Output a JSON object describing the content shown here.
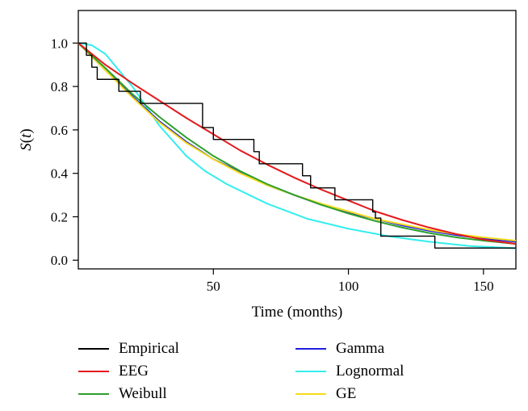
{
  "chart_data": {
    "type": "line",
    "xlabel": "Time (months)",
    "ylabel": "S(t)",
    "xlim": [
      0,
      162
    ],
    "ylim": [
      -0.04,
      1.15
    ],
    "xticks": [
      50,
      100,
      150
    ],
    "yticks": [
      0.0,
      0.2,
      0.4,
      0.6,
      0.8,
      1.0
    ],
    "ytick_labels": [
      "0.0",
      "0.2",
      "0.4",
      "0.6",
      "0.8",
      "1.0"
    ],
    "legend_position": "below",
    "series": [
      {
        "name": "Empirical",
        "color": "#000000",
        "step": true,
        "x": [
          0,
          3,
          5,
          7,
          11,
          15,
          23,
          25,
          46,
          50,
          51,
          65,
          67,
          69,
          83,
          86,
          95,
          109,
          110,
          112,
          132,
          162
        ],
        "y": [
          1.0,
          0.944,
          0.889,
          0.833,
          0.833,
          0.778,
          0.722,
          0.722,
          0.611,
          0.556,
          0.556,
          0.5,
          0.444,
          0.444,
          0.389,
          0.333,
          0.278,
          0.222,
          0.194,
          0.111,
          0.056,
          0.056
        ]
      },
      {
        "name": "EEG",
        "color": "#e41a1c",
        "x": [
          0,
          10,
          20,
          30,
          40,
          50,
          60,
          70,
          80,
          90,
          100,
          110,
          120,
          130,
          140,
          150,
          162
        ],
        "y": [
          1.0,
          0.9,
          0.815,
          0.735,
          0.655,
          0.58,
          0.505,
          0.44,
          0.38,
          0.325,
          0.275,
          0.225,
          0.185,
          0.15,
          0.12,
          0.095,
          0.075
        ]
      },
      {
        "name": "Weibull",
        "color": "#2ca02c",
        "x": [
          0,
          10,
          20,
          30,
          40,
          50,
          60,
          70,
          80,
          90,
          100,
          110,
          120,
          130,
          140,
          150,
          162
        ],
        "y": [
          1.0,
          0.885,
          0.765,
          0.66,
          0.565,
          0.48,
          0.41,
          0.35,
          0.3,
          0.255,
          0.215,
          0.18,
          0.15,
          0.125,
          0.105,
          0.09,
          0.075
        ]
      },
      {
        "name": "Gamma",
        "color": "#1f1fe0",
        "x": [
          0,
          10,
          20,
          30,
          40,
          50,
          60,
          70,
          80,
          90,
          100,
          110,
          120,
          130,
          140,
          150,
          162
        ],
        "y": [
          1.0,
          0.875,
          0.755,
          0.64,
          0.545,
          0.465,
          0.405,
          0.345,
          0.3,
          0.255,
          0.22,
          0.19,
          0.16,
          0.135,
          0.115,
          0.1,
          0.085
        ]
      },
      {
        "name": "Lognormal",
        "color": "#33eeee",
        "x": [
          0,
          5,
          10,
          20,
          30,
          40,
          47,
          55,
          70,
          85,
          100,
          115,
          130,
          145,
          162
        ],
        "y": [
          1.0,
          0.99,
          0.95,
          0.8,
          0.62,
          0.48,
          0.41,
          0.35,
          0.26,
          0.19,
          0.145,
          0.11,
          0.085,
          0.065,
          0.055
        ]
      },
      {
        "name": "GE",
        "color": "#f5dc1a",
        "x": [
          0,
          10,
          20,
          30,
          40,
          50,
          60,
          70,
          80,
          90,
          100,
          110,
          120,
          130,
          140,
          150,
          162
        ],
        "y": [
          1.0,
          0.875,
          0.75,
          0.635,
          0.54,
          0.465,
          0.4,
          0.345,
          0.3,
          0.26,
          0.225,
          0.19,
          0.165,
          0.14,
          0.12,
          0.105,
          0.09
        ]
      }
    ]
  }
}
